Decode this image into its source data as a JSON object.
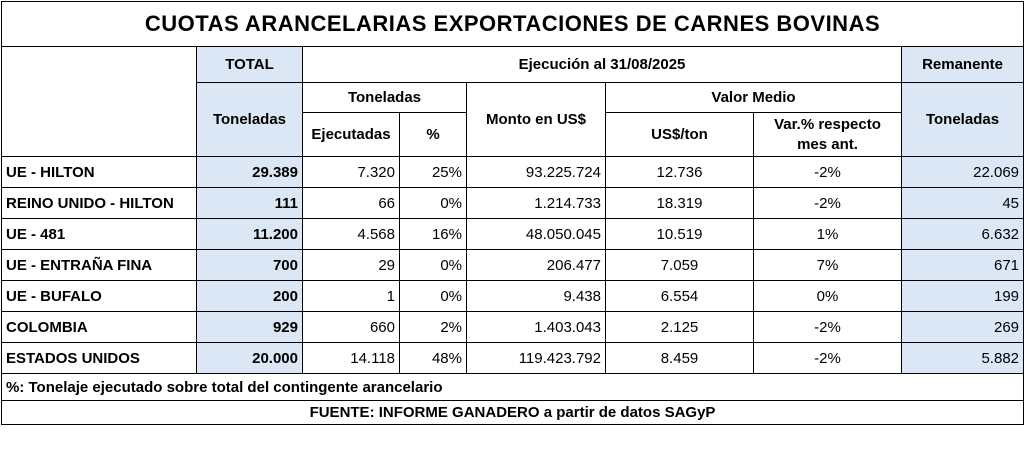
{
  "title": "CUOTAS ARANCELARIAS EXPORTACIONES DE CARNES BOVINAS",
  "headers": {
    "total": "TOTAL",
    "ejecucion": "Ejecución al 31/08/2025",
    "remanente": "Remanente",
    "toneladas": "Toneladas",
    "ejecutadas": "Ejecutadas",
    "pct": "%",
    "monto": "Monto en US$",
    "valor_medio": "Valor Medio",
    "usd_ton": "US$/ton",
    "var_pct": "Var.% respecto mes ant.",
    "remanente_toneladas": "Toneladas",
    "total_toneladas": "Toneladas"
  },
  "rows": [
    {
      "name": "UE - HILTON",
      "total": "29.389",
      "ejecutadas": "7.320",
      "pct": "25%",
      "monto": "93.225.724",
      "usd_ton": "12.736",
      "var": "-2%",
      "remanente": "22.069"
    },
    {
      "name": "REINO UNIDO - HILTON",
      "total": "111",
      "ejecutadas": "66",
      "pct": "0%",
      "monto": "1.214.733",
      "usd_ton": "18.319",
      "var": "-2%",
      "remanente": "45"
    },
    {
      "name": "UE - 481",
      "total": "11.200",
      "ejecutadas": "4.568",
      "pct": "16%",
      "monto": "48.050.045",
      "usd_ton": "10.519",
      "var": "1%",
      "remanente": "6.632"
    },
    {
      "name": "UE - ENTRAÑA FINA",
      "total": "700",
      "ejecutadas": "29",
      "pct": "0%",
      "monto": "206.477",
      "usd_ton": "7.059",
      "var": "7%",
      "remanente": "671"
    },
    {
      "name": "UE - BUFALO",
      "total": "200",
      "ejecutadas": "1",
      "pct": "0%",
      "monto": "9.438",
      "usd_ton": "6.554",
      "var": "0%",
      "remanente": "199"
    },
    {
      "name": "COLOMBIA",
      "total": "929",
      "ejecutadas": "660",
      "pct": "2%",
      "monto": "1.403.043",
      "usd_ton": "2.125",
      "var": "-2%",
      "remanente": "269"
    },
    {
      "name": "ESTADOS UNIDOS",
      "total": "20.000",
      "ejecutadas": "14.118",
      "pct": "48%",
      "monto": "119.423.792",
      "usd_ton": "8.459",
      "var": "-2%",
      "remanente": "5.882"
    }
  ],
  "note": "%: Tonelaje ejecutado sobre total del contingente arancelario",
  "source": "FUENTE: INFORME GANADERO a partir de datos SAGyP"
}
